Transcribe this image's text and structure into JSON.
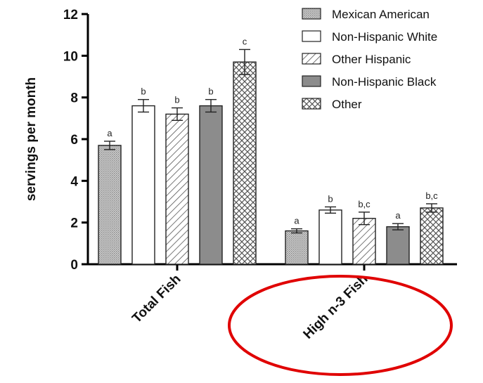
{
  "chart_data": {
    "type": "bar",
    "title": "",
    "xlabel": "",
    "ylabel": "servings per month",
    "ylim": [
      0,
      12
    ],
    "yticks": [
      0,
      2,
      4,
      6,
      8,
      10,
      12
    ],
    "categories": [
      "Total Fish",
      "High n-3 Fish"
    ],
    "legend_position": "top-right",
    "series": [
      {
        "name": "Mexican American",
        "pattern": "dots",
        "color": "#c8c8c8",
        "values": [
          5.7,
          1.6
        ],
        "errors": [
          0.2,
          0.1
        ],
        "sig": [
          "a",
          "a"
        ]
      },
      {
        "name": "Non-Hispanic White",
        "pattern": "solid-white",
        "color": "#ffffff",
        "values": [
          7.6,
          2.6
        ],
        "errors": [
          0.3,
          0.15
        ],
        "sig": [
          "b",
          "b"
        ]
      },
      {
        "name": "Other Hispanic",
        "pattern": "diagonal",
        "color": "#ffffff",
        "values": [
          7.2,
          2.2
        ],
        "errors": [
          0.3,
          0.3
        ],
        "sig": [
          "b",
          "b,c"
        ]
      },
      {
        "name": "Non-Hispanic Black",
        "pattern": "solid-gray",
        "color": "#8c8c8c",
        "values": [
          7.6,
          1.8
        ],
        "errors": [
          0.3,
          0.15
        ],
        "sig": [
          "b",
          "a"
        ]
      },
      {
        "name": "Other",
        "pattern": "crosshatch",
        "color": "#ffffff",
        "values": [
          9.7,
          2.7
        ],
        "errors": [
          0.6,
          0.2
        ],
        "sig": [
          "c",
          "b,c"
        ]
      }
    ],
    "annotation": {
      "shape": "ellipse",
      "color": "#e00000",
      "target": "High n-3 Fish"
    }
  }
}
